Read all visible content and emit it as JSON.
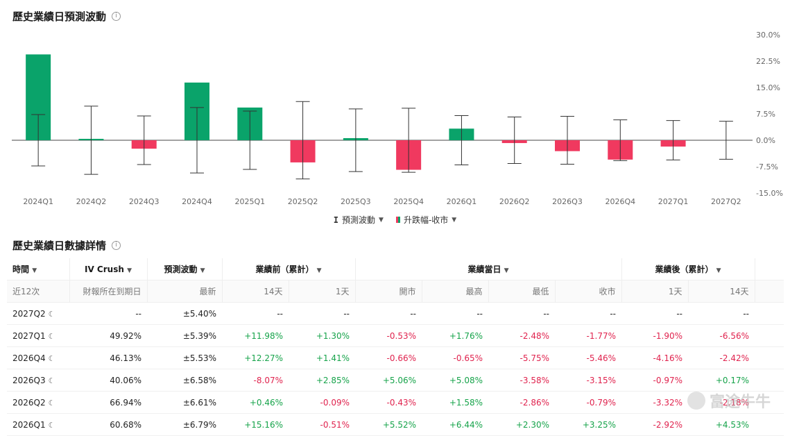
{
  "chart_section": {
    "title": "歷史業績日預測波動",
    "info_icon": "info-icon"
  },
  "detail_section": {
    "title": "歷史業績日數據詳情",
    "info_icon": "info-icon"
  },
  "legend": {
    "predicted_label": "預測波動",
    "actual_label": "升跌幅-收市",
    "colors": {
      "up": "#0aa36a",
      "down": "#f0395f"
    }
  },
  "chart_data": {
    "type": "bar",
    "categories": [
      "2024Q1",
      "2024Q2",
      "2024Q3",
      "2024Q4",
      "2025Q1",
      "2025Q2",
      "2025Q3",
      "2025Q4",
      "2026Q1",
      "2026Q2",
      "2026Q3",
      "2026Q4",
      "2027Q1",
      "2027Q2"
    ],
    "series": [
      {
        "name": "升跌幅-收市",
        "values": [
          24.4,
          0.4,
          -2.4,
          16.4,
          9.3,
          -6.3,
          0.6,
          -8.4,
          3.3,
          -0.8,
          -3.1,
          -5.5,
          -1.8,
          null
        ]
      },
      {
        "name": "預測波動",
        "values": [
          7.3,
          9.7,
          6.9,
          9.3,
          8.3,
          11.0,
          8.9,
          9.1,
          7.0,
          6.6,
          6.8,
          5.8,
          5.6,
          5.4
        ]
      }
    ],
    "y_ticks": [
      "30.0%",
      "22.5%",
      "15.0%",
      "7.5%",
      "0.0%",
      "-7.5%",
      "-15.0%"
    ],
    "ylim": [
      -15,
      30
    ],
    "grid": false
  },
  "table": {
    "group_headers": {
      "time": "時間",
      "iv_crush": "IV Crush",
      "predicted": "預測波動",
      "pre": "業績前（累計）",
      "day": "業績當日",
      "post": "業績後（累計）"
    },
    "sub_headers": [
      "近12次",
      "財報所在到期日",
      "最新",
      "14天",
      "1天",
      "開市",
      "最高",
      "最低",
      "收市",
      "1天",
      "14天"
    ],
    "rows": [
      [
        "2027Q2",
        "--",
        "±5.40%",
        "--",
        "--",
        "--",
        "--",
        "--",
        "--",
        "--",
        "--"
      ],
      [
        "2027Q1",
        "49.92%",
        "±5.39%",
        "+11.98%",
        "+1.30%",
        "-0.53%",
        "+1.76%",
        "-2.48%",
        "-1.77%",
        "-1.90%",
        "-6.56%"
      ],
      [
        "2026Q4",
        "46.13%",
        "±5.53%",
        "+12.27%",
        "+1.41%",
        "-0.66%",
        "-0.65%",
        "-5.75%",
        "-5.46%",
        "-4.16%",
        "-2.42%"
      ],
      [
        "2026Q3",
        "40.06%",
        "±6.58%",
        "-8.07%",
        "+2.85%",
        "+5.06%",
        "+5.08%",
        "-3.58%",
        "-3.15%",
        "-0.97%",
        "+0.17%"
      ],
      [
        "2026Q2",
        "66.94%",
        "±6.61%",
        "+0.46%",
        "-0.09%",
        "-0.43%",
        "+1.58%",
        "-2.86%",
        "-0.79%",
        "-3.32%",
        "-2.18%"
      ],
      [
        "2026Q1",
        "60.68%",
        "±6.79%",
        "+15.16%",
        "-0.51%",
        "+5.52%",
        "+6.44%",
        "+2.30%",
        "+3.25%",
        "-2.92%",
        "+4.53%"
      ]
    ]
  },
  "watermark": {
    "text": "富途牛牛"
  }
}
